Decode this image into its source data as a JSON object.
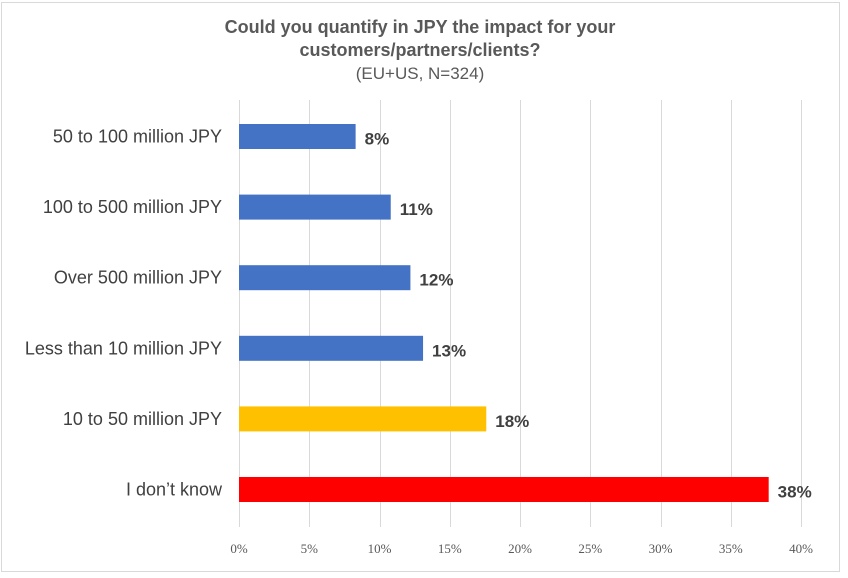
{
  "chart_data": {
    "type": "bar",
    "orientation": "horizontal",
    "title": "Could you quantify in JPY the impact for your customers/partners/clients?",
    "title_lines": [
      "Could you quantify in JPY the impact for your",
      "customers/partners/clients?"
    ],
    "subtitle": "(EU+US, N=324)",
    "categories": [
      "50 to 100 million JPY",
      "100 to 500 million JPY",
      "Over 500 million JPY",
      "Less than 10 million JPY",
      "10 to 50 million JPY",
      "I don’t know"
    ],
    "values": [
      8.3,
      10.8,
      12.2,
      13.1,
      17.6,
      37.7
    ],
    "data_labels": [
      "8%",
      "11%",
      "12%",
      "13%",
      "18%",
      "38%"
    ],
    "bar_colors": [
      "#4472C4",
      "#4472C4",
      "#4472C4",
      "#4472C4",
      "#FFC000",
      "#FF0000"
    ],
    "xlim": [
      0,
      40
    ],
    "xticks": [
      0,
      5,
      10,
      15,
      20,
      25,
      30,
      35,
      40
    ],
    "xtick_labels": [
      "0%",
      "5%",
      "10%",
      "15%",
      "20%",
      "25%",
      "30%",
      "35%",
      "40%"
    ],
    "xlabel": "",
    "ylabel": "",
    "grid": true,
    "legend": "none"
  }
}
